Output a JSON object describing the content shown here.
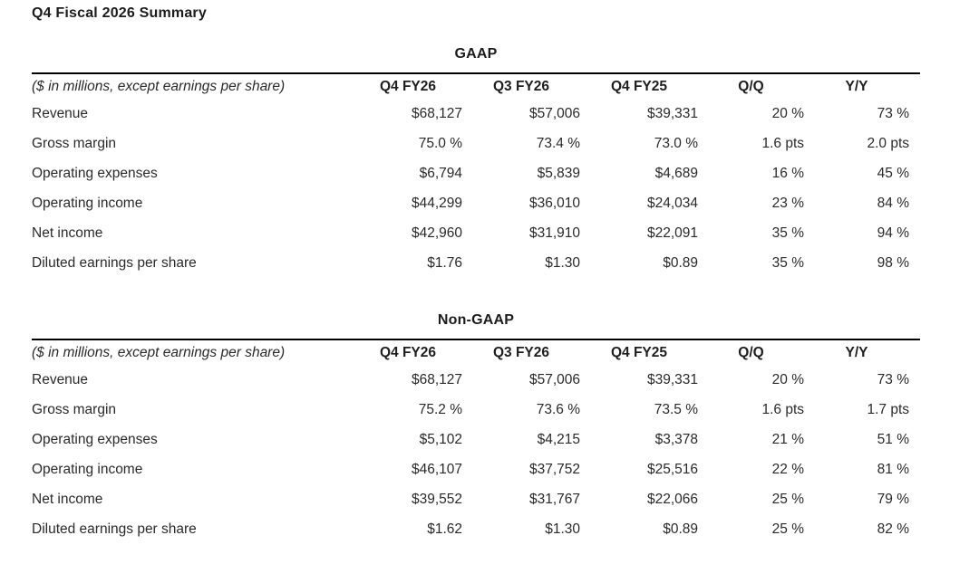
{
  "page_title": "Q4 Fiscal 2026 Summary",
  "columns_note": "($ in millions, except earnings per share)",
  "column_headers": [
    "Q4 FY26",
    "Q3 FY26",
    "Q4 FY25",
    "Q/Q",
    "Y/Y"
  ],
  "colors": {
    "background": "#ffffff",
    "text": "#232323",
    "rule": "#000000"
  },
  "tables": [
    {
      "title": "GAAP",
      "rows": [
        {
          "label": "Revenue",
          "values": [
            "$68,127",
            "$57,006",
            "$39,331",
            "20 %",
            "73 %"
          ]
        },
        {
          "label": "Gross margin",
          "values": [
            "75.0 %",
            "73.4 %",
            "73.0 %",
            "1.6 pts",
            "2.0 pts"
          ]
        },
        {
          "label": "Operating expenses",
          "values": [
            "$6,794",
            "$5,839",
            "$4,689",
            "16 %",
            "45 %"
          ]
        },
        {
          "label": "Operating income",
          "values": [
            "$44,299",
            "$36,010",
            "$24,034",
            "23 %",
            "84 %"
          ]
        },
        {
          "label": "Net income",
          "values": [
            "$42,960",
            "$31,910",
            "$22,091",
            "35 %",
            "94 %"
          ]
        },
        {
          "label": "Diluted earnings per share",
          "values": [
            "$1.76",
            "$1.30",
            "$0.89",
            "35 %",
            "98 %"
          ]
        }
      ]
    },
    {
      "title": "Non-GAAP",
      "rows": [
        {
          "label": "Revenue",
          "values": [
            "$68,127",
            "$57,006",
            "$39,331",
            "20 %",
            "73 %"
          ]
        },
        {
          "label": "Gross margin",
          "values": [
            "75.2 %",
            "73.6 %",
            "73.5 %",
            "1.6 pts",
            "1.7 pts"
          ]
        },
        {
          "label": "Operating expenses",
          "values": [
            "$5,102",
            "$4,215",
            "$3,378",
            "21 %",
            "51 %"
          ]
        },
        {
          "label": "Operating income",
          "values": [
            "$46,107",
            "$37,752",
            "$25,516",
            "22 %",
            "81 %"
          ]
        },
        {
          "label": "Net income",
          "values": [
            "$39,552",
            "$31,767",
            "$22,066",
            "25 %",
            "79 %"
          ]
        },
        {
          "label": "Diluted earnings per share",
          "values": [
            "$1.62",
            "$1.30",
            "$0.89",
            "25 %",
            "82 %"
          ]
        }
      ]
    }
  ]
}
